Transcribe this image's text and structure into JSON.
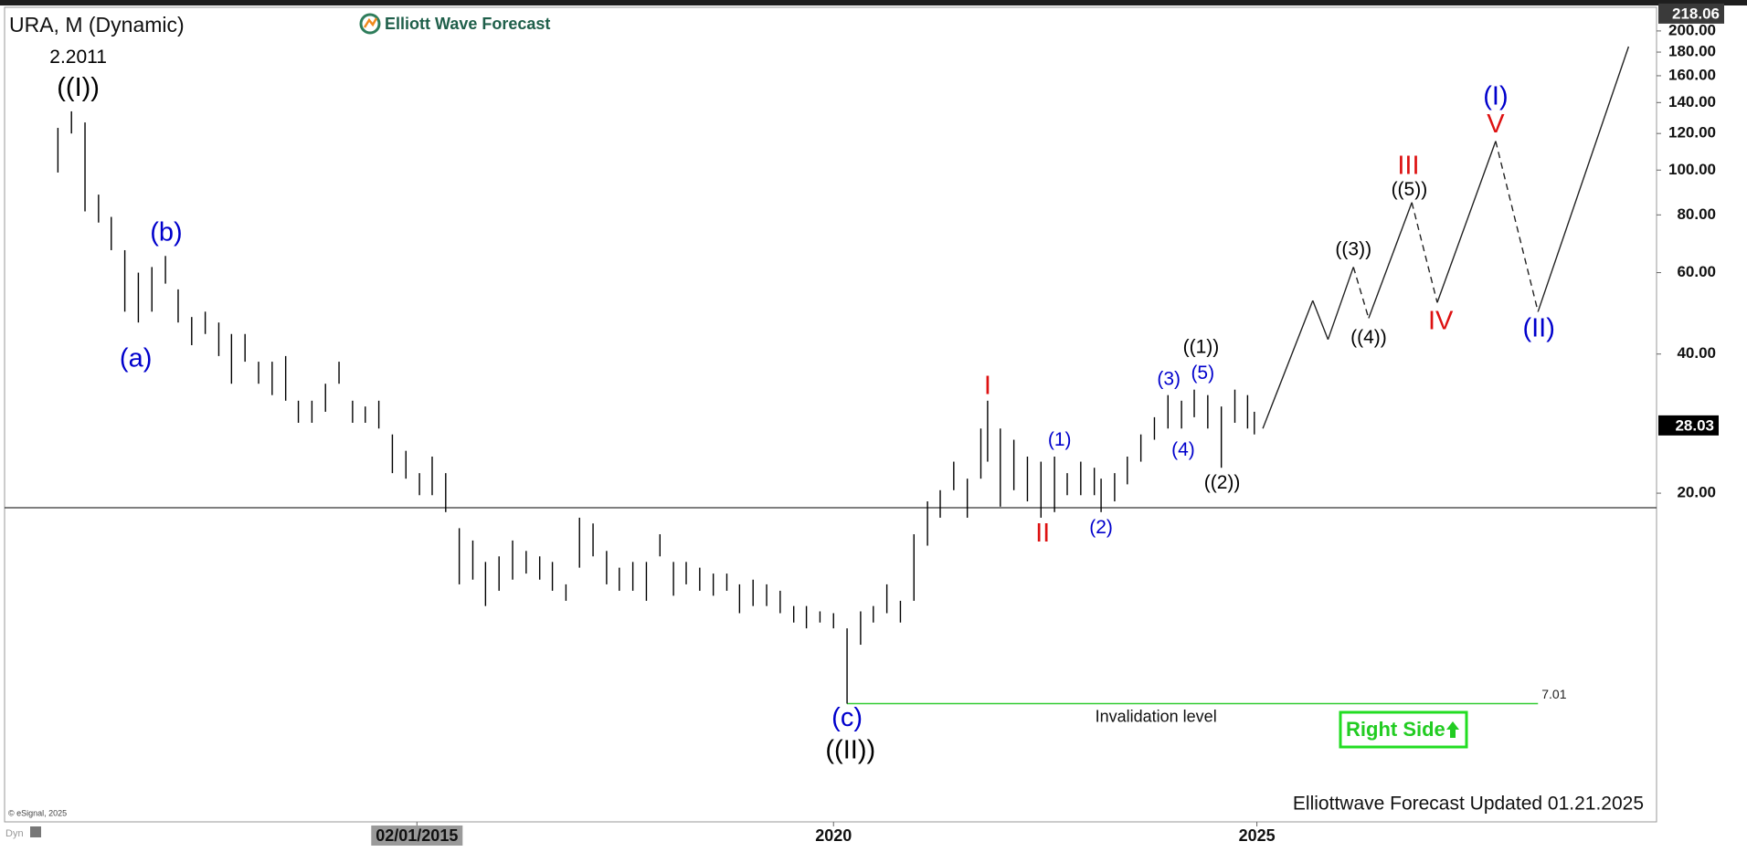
{
  "chart_data": {
    "type": "ohlc",
    "title": "URA, M (Dynamic)",
    "brand": "Elliott Wave Forecast",
    "footer": "Elliottwave Forecast Updated 01.21.2025",
    "copyright": "© eSignal, 2025",
    "mode": "Dyn",
    "button": "Right Side",
    "log_scale": true,
    "xlim": [
      2010.21,
      2029.72
    ],
    "ylim": [
      3.89,
      225
    ],
    "xticks": [
      {
        "value": 2015.08,
        "label": "02/01/2015"
      },
      2020,
      2025
    ],
    "yticks": [
      {
        "value": 20,
        "label": "20.00"
      },
      {
        "value": 40,
        "label": "40.00"
      },
      {
        "value": 60,
        "label": "60.00"
      },
      {
        "value": 80,
        "label": "80.00"
      },
      {
        "value": 100,
        "label": "100.00"
      },
      {
        "value": 120,
        "label": "120.00"
      },
      {
        "value": 140,
        "label": "140.00"
      },
      {
        "value": 160,
        "label": "160.00"
      },
      {
        "value": 180,
        "label": "180.00"
      },
      {
        "value": 200,
        "label": "200.00"
      }
    ],
    "color": "#000000",
    "x": [
      2010.84,
      2011.0,
      2011.16,
      2011.32,
      2011.47,
      2011.63,
      2011.79,
      2011.95,
      2012.11,
      2012.26,
      2012.42,
      2012.58,
      2012.74,
      2012.89,
      2013.05,
      2013.21,
      2013.37,
      2013.53,
      2013.68,
      2013.84,
      2014.0,
      2014.16,
      2014.32,
      2014.47,
      2014.63,
      2014.79,
      2014.95,
      2015.11,
      2015.26,
      2015.42,
      2015.58,
      2015.74,
      2015.89,
      2016.05,
      2016.21,
      2016.37,
      2016.53,
      2016.68,
      2016.84,
      2017.0,
      2017.16,
      2017.32,
      2017.47,
      2017.63,
      2017.79,
      2017.95,
      2018.11,
      2018.26,
      2018.42,
      2018.58,
      2018.74,
      2018.89,
      2019.05,
      2019.21,
      2019.37,
      2019.53,
      2019.68,
      2019.84,
      2020.0,
      2020.16,
      2020.32,
      2020.47,
      2020.63,
      2020.79,
      2020.95,
      2021.11,
      2021.26,
      2021.42,
      2021.58,
      2021.74,
      2021.82,
      2021.97,
      2022.13,
      2022.29,
      2022.45,
      2022.61,
      2022.76,
      2022.92,
      2023.08,
      2023.16,
      2023.32,
      2023.47,
      2023.63,
      2023.79,
      2023.95,
      2024.11,
      2024.26,
      2024.42,
      2024.58,
      2024.74,
      2024.89,
      2024.97
    ],
    "high": [
      123.4,
      134.0,
      126.8,
      88.5,
      79.2,
      67.1,
      60.0,
      61.7,
      65.2,
      55.2,
      48.1,
      49.4,
      46.8,
      44.2,
      44.2,
      38.5,
      38.5,
      39.6,
      31.7,
      31.7,
      34.5,
      38.5,
      31.7,
      30.8,
      31.7,
      26.8,
      24.7,
      22.1,
      24.0,
      22.1,
      16.8,
      15.8,
      14.2,
      14.6,
      15.8,
      15.0,
      14.6,
      14.2,
      12.7,
      17.7,
      17.2,
      15.0,
      13.8,
      14.2,
      14.2,
      16.3,
      14.2,
      14.2,
      13.8,
      13.4,
      13.4,
      12.7,
      13.0,
      12.7,
      12.3,
      11.4,
      11.4,
      11.1,
      11.0,
      10.2,
      11.1,
      11.4,
      12.7,
      11.7,
      16.3,
      19.2,
      20.3,
      23.4,
      21.5,
      27.6,
      31.7,
      27.6,
      26.1,
      24.0,
      23.4,
      24.0,
      22.1,
      23.4,
      22.7,
      21.5,
      22.1,
      24.0,
      26.8,
      29.2,
      32.6,
      31.7,
      33.5,
      32.6,
      30.8,
      33.5,
      32.6,
      30.0
    ],
    "low": [
      98.8,
      120.0,
      81.4,
      77.0,
      67.1,
      49.4,
      46.8,
      49.4,
      56.8,
      46.8,
      41.8,
      44.2,
      39.6,
      34.5,
      38.5,
      34.5,
      32.6,
      31.7,
      28.4,
      28.4,
      30.0,
      34.5,
      28.4,
      28.4,
      27.6,
      22.1,
      21.5,
      19.8,
      19.8,
      18.2,
      12.7,
      13.0,
      11.4,
      12.3,
      13.0,
      13.4,
      13.0,
      12.3,
      11.7,
      13.8,
      14.6,
      12.7,
      12.3,
      12.3,
      11.7,
      14.6,
      12.0,
      12.7,
      12.3,
      12.0,
      12.3,
      11.0,
      11.4,
      11.4,
      11.0,
      10.5,
      10.2,
      10.5,
      10.2,
      7.01,
      9.4,
      10.5,
      11.0,
      10.5,
      11.7,
      15.4,
      17.7,
      20.3,
      17.7,
      21.5,
      23.4,
      18.7,
      20.3,
      19.2,
      17.7,
      18.2,
      19.8,
      19.8,
      19.8,
      18.2,
      19.2,
      20.9,
      23.4,
      26.1,
      27.6,
      27.6,
      29.2,
      27.6,
      22.7,
      28.4,
      27.6,
      26.8
    ],
    "hline": 18.6,
    "projection": {
      "x": [
        2025.07,
        2025.66,
        2025.84,
        2026.14,
        2026.32,
        2026.83,
        2027.13,
        2027.82,
        2028.32,
        2029.39
      ],
      "values": [
        27.6,
        52.2,
        43.0,
        61.7,
        47.8,
        85.1,
        51.7,
        115.5,
        49.4,
        185.0
      ],
      "dashed": [
        false,
        false,
        false,
        true,
        false,
        true,
        false,
        true,
        false
      ]
    },
    "invalidation": {
      "value": 7.01,
      "start": 2020.16,
      "end": 2028.32,
      "label": "Invalidation level",
      "color": "#33cc33"
    },
    "last_price": 28.03,
    "high_price": 218.06,
    "annotations": [
      {
        "text": "2.2011",
        "x": 2011.08,
        "y": 175,
        "color": "#000000"
      },
      {
        "text": "((I))",
        "x": 2011.08,
        "y": 150,
        "color": "#000000"
      },
      {
        "text": "(b)",
        "x": 2012.12,
        "y": 72.9,
        "color": "#0000cc"
      },
      {
        "text": "(a)",
        "x": 2011.76,
        "y": 38.9,
        "color": "#0000cc"
      },
      {
        "text": "(c)",
        "x": 2020.16,
        "y": 6.49,
        "color": "#0000cc"
      },
      {
        "text": "((II))",
        "x": 2020.2,
        "y": 5.53,
        "color": "#000000"
      },
      {
        "text": "I",
        "x": 2021.82,
        "y": 33.9,
        "color": "#dd1111"
      },
      {
        "text": "II",
        "x": 2022.47,
        "y": 16.29,
        "color": "#dd1111"
      },
      {
        "text": "(1)",
        "x": 2022.67,
        "y": 26.0,
        "color": "#0000cc"
      },
      {
        "text": "(2)",
        "x": 2023.16,
        "y": 16.8,
        "color": "#0000cc"
      },
      {
        "text": "(3)",
        "x": 2023.96,
        "y": 35.2,
        "color": "#0000cc"
      },
      {
        "text": "(4)",
        "x": 2024.13,
        "y": 24.7,
        "color": "#0000cc"
      },
      {
        "text": "(5)",
        "x": 2024.36,
        "y": 36.2,
        "color": "#0000cc"
      },
      {
        "text": "((1))",
        "x": 2024.34,
        "y": 41.2,
        "color": "#000000"
      },
      {
        "text": "((2))",
        "x": 2024.59,
        "y": 21.0,
        "color": "#000000"
      },
      {
        "text": "((3))",
        "x": 2026.14,
        "y": 67.1,
        "color": "#000000"
      },
      {
        "text": "((4))",
        "x": 2026.32,
        "y": 43.3,
        "color": "#000000"
      },
      {
        "text": "((5))",
        "x": 2026.8,
        "y": 90.5,
        "color": "#000000"
      },
      {
        "text": "III",
        "x": 2026.79,
        "y": 101.6,
        "color": "#dd1111"
      },
      {
        "text": "IV",
        "x": 2027.17,
        "y": 46.9,
        "color": "#dd1111"
      },
      {
        "text": "V",
        "x": 2027.82,
        "y": 124.8,
        "color": "#dd1111"
      },
      {
        "text": "(I)",
        "x": 2027.82,
        "y": 143.4,
        "color": "#0000cc"
      },
      {
        "text": "(II)",
        "x": 2028.33,
        "y": 45.2,
        "color": "#0000cc"
      }
    ]
  }
}
